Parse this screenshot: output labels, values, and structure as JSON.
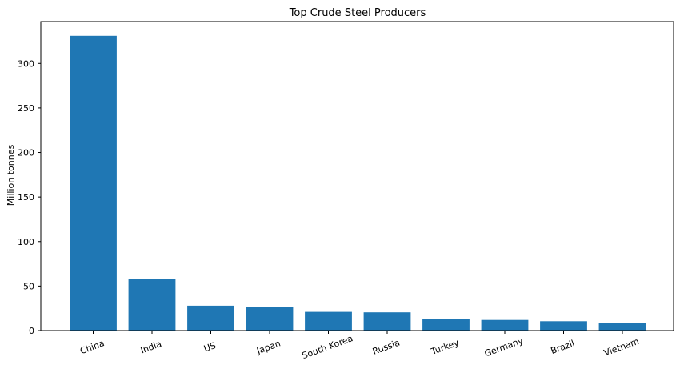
{
  "chart_data": {
    "type": "bar",
    "title": "Top Crude Steel Producers",
    "xlabel": "",
    "ylabel": "Million tonnes",
    "categories": [
      "China",
      "India",
      "US",
      "Japan",
      "South Korea",
      "Russia",
      "Turkey",
      "Germany",
      "Brazil",
      "Vietnam"
    ],
    "values": [
      331,
      58,
      28,
      27,
      21,
      20.5,
      13,
      12,
      10.5,
      8.5
    ],
    "ylim": [
      0,
      347
    ],
    "yticks": [
      0,
      50,
      100,
      150,
      200,
      250,
      300
    ],
    "bar_color": "#1f77b4",
    "grid": false,
    "legend": false
  }
}
